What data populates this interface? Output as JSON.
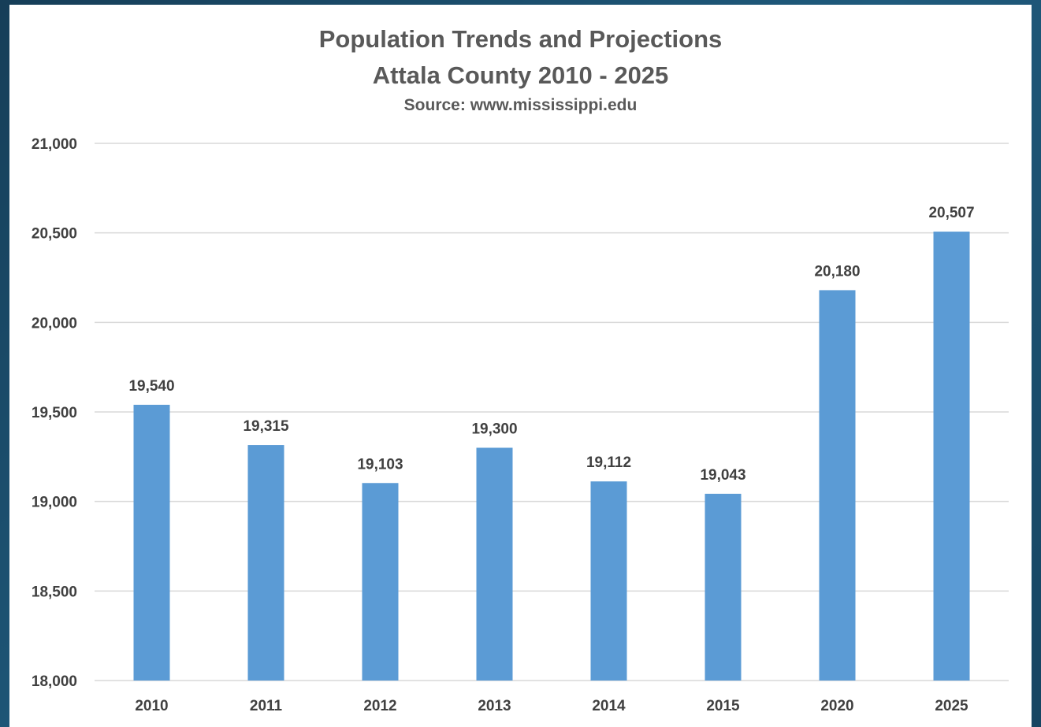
{
  "chart_data": {
    "type": "bar",
    "title": "Population Trends and Projections",
    "title_line2": "Attala County 2010 - 2025",
    "subtitle": "Source: www.mississippi.edu",
    "categories": [
      "2010",
      "2011",
      "2012",
      "2013",
      "2014",
      "2015",
      "2020",
      "2025"
    ],
    "values": [
      19540,
      19315,
      19103,
      19300,
      19112,
      19043,
      20180,
      20507
    ],
    "value_labels": [
      "19,540",
      "19,315",
      "19,103",
      "19,300",
      "19,112",
      "19,043",
      "20,180",
      "20,507"
    ],
    "ylim": [
      18000,
      21000
    ],
    "yticks": [
      18000,
      18500,
      19000,
      19500,
      20000,
      20500,
      21000
    ],
    "ytick_labels": [
      "18,000",
      "18,500",
      "19,000",
      "19,500",
      "20,000",
      "20,500",
      "21,000"
    ],
    "grid": true,
    "legend": "none",
    "bar_color": "#5b9bd5",
    "grid_color": "#d9d9d9",
    "background": "#1d4f6e"
  }
}
